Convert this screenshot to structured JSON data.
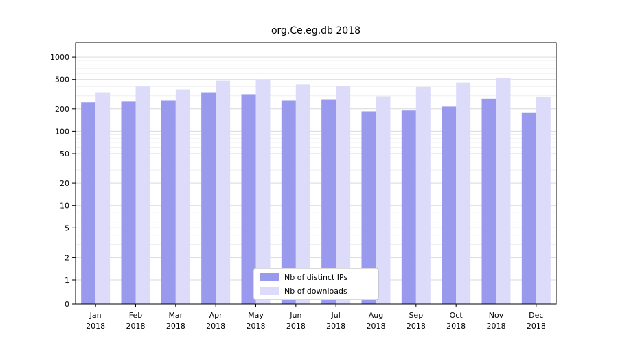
{
  "chart_data": {
    "type": "bar",
    "title": "org.Ce.eg.db 2018",
    "categories": [
      "Jan",
      "Feb",
      "Mar",
      "Apr",
      "May",
      "Jun",
      "Jul",
      "Aug",
      "Sep",
      "Oct",
      "Nov",
      "Dec"
    ],
    "x_year_label": "2018",
    "yscale": "log",
    "yticks": [
      0,
      1,
      2,
      5,
      10,
      20,
      50,
      100,
      200,
      500,
      1000
    ],
    "ylim": [
      0,
      1600
    ],
    "grid": true,
    "legend_position": "lower-center-inside",
    "series": [
      {
        "name": "Nb of distinct IPs",
        "color": "#9999ee",
        "values": [
          245,
          255,
          260,
          335,
          315,
          260,
          265,
          185,
          190,
          215,
          275,
          180
        ]
      },
      {
        "name": "Nb of downloads",
        "color": "#dcdcfa",
        "values": [
          335,
          400,
          365,
          480,
          505,
          425,
          410,
          295,
          395,
          450,
          525,
          290
        ]
      }
    ]
  }
}
